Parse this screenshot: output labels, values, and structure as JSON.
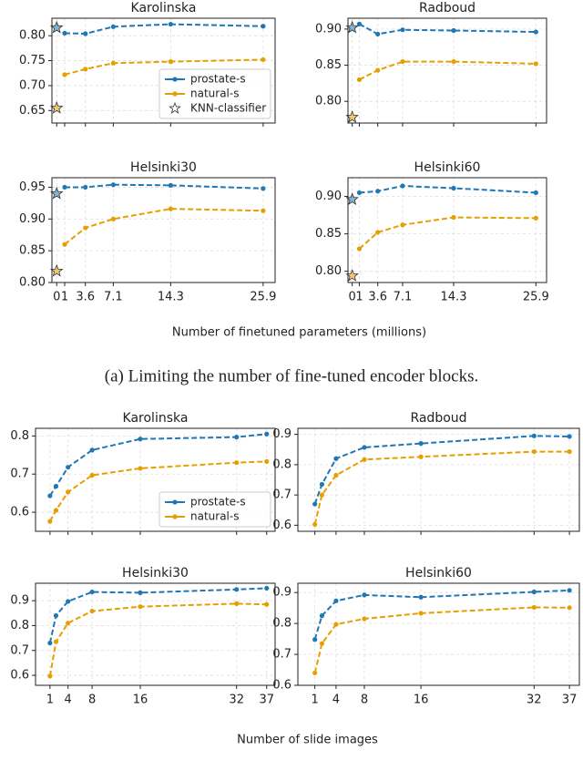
{
  "chart_data": [
    {
      "type": "line",
      "xlabel": "Number of finetuned parameters (millions)",
      "caption": "(a) Limiting the number of fine-tuned encoder blocks.",
      "x": [
        1,
        3.6,
        7.1,
        14.3,
        25.9
      ],
      "xlim": [
        -0.6,
        27.4
      ],
      "xticks": [
        0,
        1,
        3.6,
        7.1,
        14.3,
        25.9
      ],
      "grid": true,
      "legend": "lower right",
      "legend_panel": 0,
      "series": [
        {
          "name": "prostate-s",
          "color": "#1f77b4"
        },
        {
          "name": "natural-s",
          "color": "#e69f00"
        }
      ],
      "knn": {
        "name": "KNN-classifier",
        "x": 0
      },
      "panels": [
        {
          "title": "Karolinska",
          "ylim": [
            0.625,
            0.835
          ],
          "yticks": [
            0.65,
            {
              "value": 0.7,
              "label": "0.70"
            },
            0.75,
            {
              "value": 0.8,
              "label": "0.80"
            }
          ],
          "series": [
            [
              0.805,
              0.804,
              0.818,
              0.823,
              0.819
            ],
            [
              0.722,
              0.733,
              0.745,
              0.748,
              0.752
            ]
          ],
          "knn": [
            0.816,
            0.655
          ]
        },
        {
          "title": "Radboud",
          "ylim": [
            0.77,
            0.915
          ],
          "yticks": [
            {
              "value": 0.8,
              "label": "0.80"
            },
            0.85,
            {
              "value": 0.9,
              "label": "0.90"
            }
          ],
          "series": [
            [
              0.907,
              0.893,
              0.899,
              0.898,
              0.896
            ],
            [
              0.83,
              0.843,
              0.855,
              0.855,
              0.852
            ]
          ],
          "knn": [
            0.902,
            0.778
          ]
        },
        {
          "title": "Helsinki30",
          "ylim": [
            0.8,
            0.965
          ],
          "yticks": [
            {
              "value": 0.8,
              "label": "0.80"
            },
            0.85,
            {
              "value": 0.9,
              "label": "0.90"
            },
            0.95
          ],
          "series": [
            [
              0.95,
              0.95,
              0.954,
              0.953,
              0.948
            ],
            [
              0.86,
              0.886,
              0.9,
              0.916,
              0.913
            ]
          ],
          "knn": [
            0.94,
            0.818
          ]
        },
        {
          "title": "Helsinki60",
          "ylim": [
            0.785,
            0.925
          ],
          "yticks": [
            {
              "value": 0.8,
              "label": "0.80"
            },
            0.85,
            {
              "value": 0.9,
              "label": "0.90"
            }
          ],
          "series": [
            [
              0.905,
              0.907,
              0.914,
              0.911,
              0.905
            ],
            [
              0.83,
              0.852,
              0.862,
              0.872,
              0.871
            ]
          ],
          "knn": [
            0.896,
            0.794
          ]
        }
      ]
    },
    {
      "type": "line",
      "xlabel": "Number of slide images",
      "x": [
        1,
        2,
        4,
        8,
        16,
        32,
        37
      ],
      "xlim": [
        -1.4,
        38.4
      ],
      "xticks": [
        1,
        4,
        8,
        16,
        32,
        37
      ],
      "grid": true,
      "legend": "lower right",
      "legend_panel": 0,
      "series": [
        {
          "name": "prostate-s",
          "color": "#1f77b4"
        },
        {
          "name": "natural-s",
          "color": "#e69f00"
        }
      ],
      "panels": [
        {
          "title": "Karolinska",
          "ylim": [
            0.55,
            0.82
          ],
          "yticks": [
            0.6,
            0.7,
            0.8
          ],
          "series": [
            [
              0.643,
              0.668,
              0.718,
              0.763,
              0.792,
              0.797,
              0.805
            ],
            [
              0.576,
              0.605,
              0.653,
              0.697,
              0.715,
              0.73,
              0.733
            ]
          ]
        },
        {
          "title": "Radboud",
          "ylim": [
            0.58,
            0.92
          ],
          "yticks": [
            0.6,
            0.7,
            0.8,
            0.9
          ],
          "series": [
            [
              0.67,
              0.735,
              0.82,
              0.857,
              0.87,
              0.895,
              0.893
            ],
            [
              0.603,
              0.7,
              0.765,
              0.817,
              0.826,
              0.843,
              0.843
            ]
          ]
        },
        {
          "title": "Helsinki30",
          "ylim": [
            0.56,
            0.97
          ],
          "yticks": [
            0.6,
            0.7,
            0.8,
            0.9
          ],
          "series": [
            [
              0.73,
              0.84,
              0.897,
              0.935,
              0.932,
              0.945,
              0.95
            ],
            [
              0.597,
              0.735,
              0.81,
              0.858,
              0.876,
              0.888,
              0.885
            ]
          ]
        },
        {
          "title": "Helsinki60",
          "ylim": [
            0.6,
            0.93
          ],
          "yticks": [
            0.6,
            0.7,
            0.8,
            0.9
          ],
          "series": [
            [
              0.748,
              0.825,
              0.873,
              0.892,
              0.885,
              0.902,
              0.907
            ],
            [
              0.64,
              0.735,
              0.797,
              0.815,
              0.833,
              0.852,
              0.851
            ]
          ]
        }
      ]
    }
  ]
}
